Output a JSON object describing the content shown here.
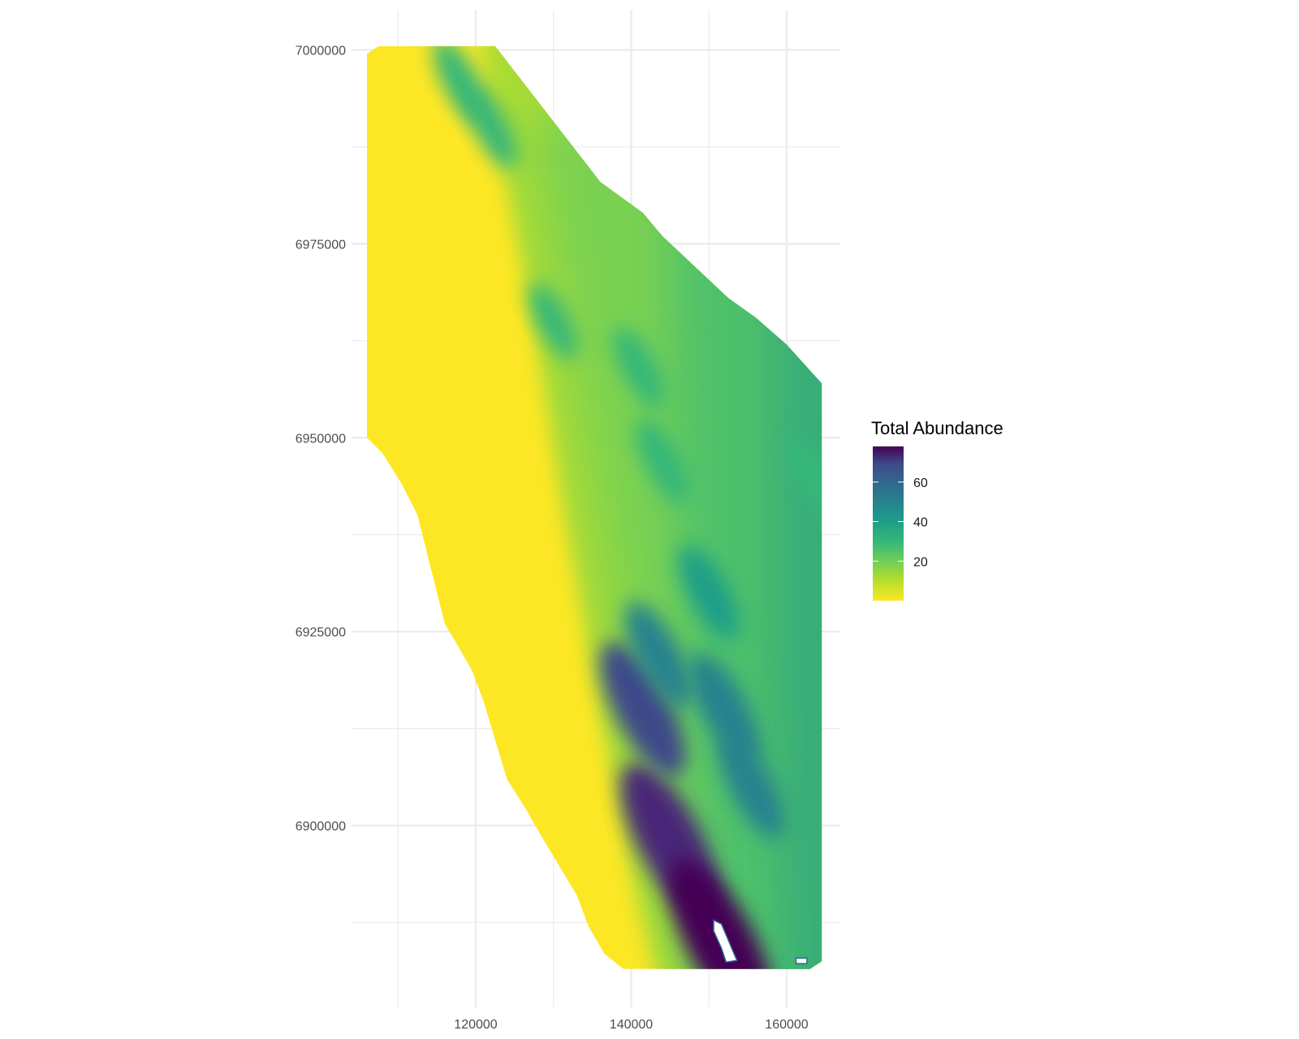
{
  "chart_data": {
    "type": "heatmap",
    "title": "",
    "xlabel": "",
    "ylabel": "",
    "x_ticks": [
      120000,
      140000,
      160000
    ],
    "x_tick_labels": [
      "120000",
      "140000",
      "160000"
    ],
    "y_ticks": [
      6900000,
      6925000,
      6950000,
      6975000,
      7000000
    ],
    "y_tick_labels": [
      "6900000",
      "6925000",
      "6950000",
      "6975000",
      "7000000"
    ],
    "xlim": [
      106000,
      168000
    ],
    "ylim": [
      6880000,
      7005000
    ],
    "grid": true,
    "colormap": "viridis (reversed: low = yellow, high = dark purple)",
    "colors": {
      "low": "#fde725",
      "mid_low": "#8fd744",
      "mid": "#21918c",
      "mid_high": "#31688e",
      "high": "#440154",
      "background": "#ffffff",
      "grid": "#ebebeb"
    },
    "legend": {
      "title": "Total Abundance",
      "position": "right",
      "min": 0,
      "max": 78,
      "ticks": [
        20,
        40,
        60
      ],
      "tick_labels": [
        "20",
        "40",
        "60"
      ]
    },
    "survey_area_outline": [
      [
        106000,
        6999500
      ],
      [
        107500,
        7000500
      ],
      [
        122500,
        7000500
      ],
      [
        136000,
        6983000
      ],
      [
        141500,
        6979000
      ],
      [
        144000,
        6976000
      ],
      [
        152500,
        6968000
      ],
      [
        156000,
        6965500
      ],
      [
        160000,
        6962000
      ],
      [
        164500,
        6957000
      ],
      [
        164500,
        6882500
      ],
      [
        163000,
        6881500
      ],
      [
        139000,
        6881500
      ],
      [
        136500,
        6883500
      ],
      [
        134500,
        6887000
      ],
      [
        133000,
        6891000
      ],
      [
        130000,
        6896000
      ],
      [
        128500,
        6898500
      ],
      [
        126500,
        6902000
      ],
      [
        124000,
        6906000
      ],
      [
        122500,
        6911000
      ],
      [
        121000,
        6916000
      ],
      [
        119500,
        6920000
      ],
      [
        117500,
        6923500
      ],
      [
        116000,
        6926000
      ],
      [
        115000,
        6930000
      ],
      [
        114000,
        6934000
      ],
      [
        112500,
        6940000
      ],
      [
        110500,
        6944000
      ],
      [
        108000,
        6948000
      ],
      [
        106000,
        6950000
      ]
    ],
    "abundance_bands": [
      {
        "range": [
          0,
          5
        ],
        "description": "western (landward) portion of survey area"
      },
      {
        "range": [
          8,
          22
        ],
        "description": "central band running NW to SE"
      },
      {
        "range": [
          20,
          30
        ],
        "description": "eastern (offshore) portion of survey area"
      }
    ],
    "hotspots": [
      {
        "x": 145000,
        "y": 6898000,
        "value": 70
      },
      {
        "x": 141500,
        "y": 6915000,
        "value": 58
      },
      {
        "x": 151500,
        "y": 6885000,
        "value": 75
      },
      {
        "x": 152000,
        "y": 6915000,
        "value": 45
      },
      {
        "x": 155500,
        "y": 6905000,
        "value": 40
      },
      {
        "x": 143500,
        "y": 6922000,
        "value": 42
      },
      {
        "x": 150000,
        "y": 6930000,
        "value": 35
      },
      {
        "x": 118000,
        "y": 6996000,
        "value": 30
      },
      {
        "x": 122000,
        "y": 6990000,
        "value": 28
      },
      {
        "x": 144000,
        "y": 6947000,
        "value": 30
      },
      {
        "x": 163500,
        "y": 6945000,
        "value": 30
      },
      {
        "x": 141000,
        "y": 6959000,
        "value": 28
      },
      {
        "x": 130000,
        "y": 6965000,
        "value": 25
      }
    ],
    "no_data_holes": [
      [
        [
          150600,
          6887800
        ],
        [
          151600,
          6887300
        ],
        [
          153600,
          6882600
        ],
        [
          152200,
          6882400
        ],
        [
          151600,
          6884200
        ],
        [
          150600,
          6886400
        ]
      ],
      [
        [
          161200,
          6882900
        ],
        [
          162600,
          6882900
        ],
        [
          162600,
          6882200
        ],
        [
          161200,
          6882200
        ]
      ]
    ]
  }
}
